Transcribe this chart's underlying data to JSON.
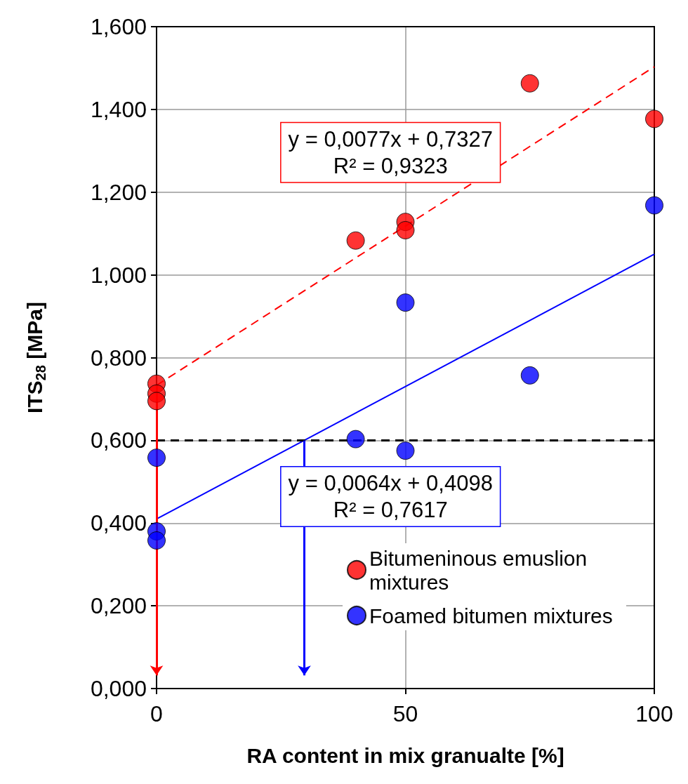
{
  "chart_data": {
    "type": "scatter",
    "xlabel": "RA content in mix granualte [%]",
    "ylabel": "ITS$_{28}$ [MPa]",
    "xlim": [
      0,
      100
    ],
    "xticks": [
      0,
      50,
      100
    ],
    "ylim": [
      0,
      1.6
    ],
    "yticks": [
      {
        "value": 0,
        "label": "0,000"
      },
      {
        "value": 0.2,
        "label": "0,200"
      },
      {
        "value": 0.4,
        "label": "0,400"
      },
      {
        "value": 0.6,
        "label": "0,600"
      },
      {
        "value": 0.8,
        "label": "0,800"
      },
      {
        "value": 1.0,
        "label": "1,000"
      },
      {
        "value": 1.2,
        "label": "1,200"
      },
      {
        "value": 1.4,
        "label": "1,400"
      },
      {
        "value": 1.6,
        "label": "1,600"
      }
    ],
    "grid": true,
    "legend": "bottom right",
    "marker": "circle",
    "series": [
      {
        "name": "Bitumeninous emuslion mixtures",
        "color": "#ff0000",
        "x": [
          0,
          0,
          0,
          40,
          50,
          50,
          75,
          100
        ],
        "values": [
          0.737,
          0.713,
          0.695,
          1.083,
          1.128,
          1.108,
          1.463,
          1.377
        ]
      },
      {
        "name": "Foamed bitumen mixtures",
        "color": "#0000ff",
        "x": [
          0,
          0,
          0,
          40,
          50,
          50,
          75,
          100
        ],
        "values": [
          0.558,
          0.38,
          0.358,
          0.603,
          0.933,
          0.575,
          0.757,
          1.168
        ]
      },
      {
        "type": "line",
        "color": "#ff0000",
        "line_style": "dashed",
        "marker": "none",
        "x": [
          0,
          100
        ],
        "values": [
          0.733,
          1.503
        ]
      },
      {
        "type": "line",
        "color": "#0000ff",
        "line_style": "solid",
        "marker": "none",
        "x": [
          0,
          100
        ],
        "values": [
          0.41,
          1.05
        ]
      }
    ],
    "ref_lines": [
      {
        "axis": "y",
        "value": 0.6,
        "color": "#000000",
        "line_style": "dashed"
      }
    ],
    "annotations": [
      "y = 0,0077x + 0,7327\nR² = 0,9323",
      "y = 0,0064x + 0,4098\nR² = 0,7617"
    ]
  }
}
